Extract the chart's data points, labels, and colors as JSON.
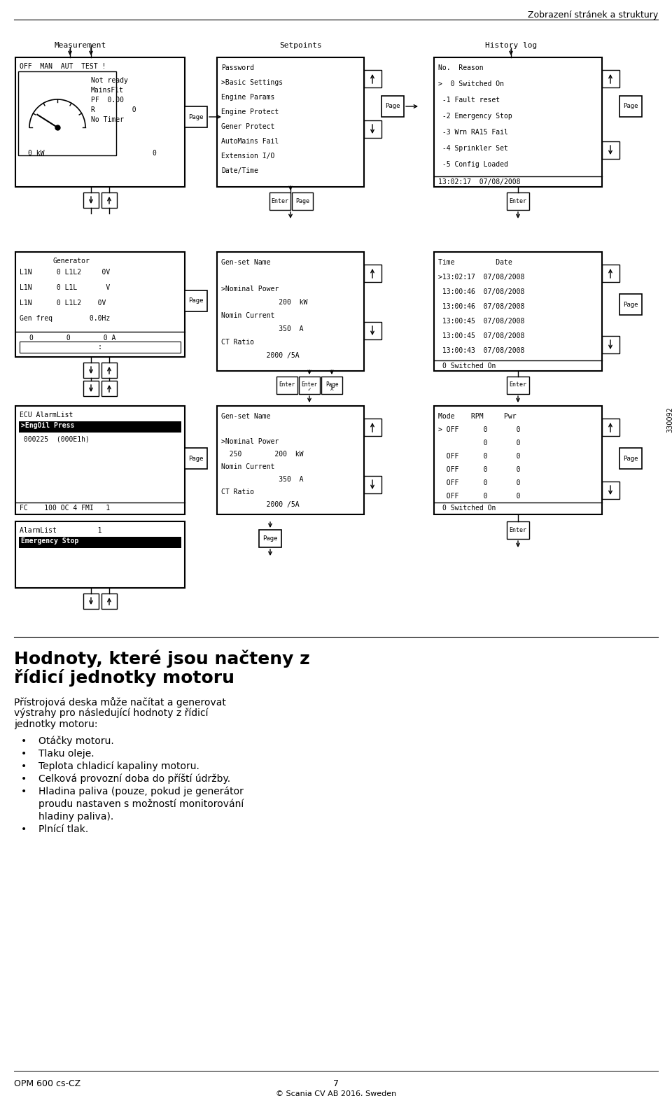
{
  "title_top_right": "Zobrazení stránek a struktury",
  "bg_color": "#ffffff",
  "text_color": "#000000",
  "mono_font": "DejaVu Sans Mono",
  "sans_font": "DejaVu Sans",
  "heading_line1": "Hodnoty, které jsou načteny z",
  "heading_line2": "řídicí jednotky motoru",
  "body_line1": "Přístrojová deska může načítat a generovat",
  "body_line2": "výstrahy pro následující hodnoty z řídicí",
  "body_line3": "jednotky motoru:",
  "bullets": [
    "Otáčky motoru.",
    "Tlaku oleje.",
    "Teplota chladicí kapaliny motoru.",
    "Celková provozní doba do příští údržby.",
    "Hladina paliva (pouze, pokud je generátor",
    "proudu nastaven s možností monitorování",
    "hladiny paliva).",
    "Plnící tlak."
  ],
  "bullet_marks": [
    true,
    true,
    true,
    true,
    true,
    false,
    false,
    true
  ],
  "footer_left": "OPM 600 cs-CZ",
  "footer_center": "7",
  "footer_right": "© Scania CV AB 2016, Sweden",
  "sidebar_text": "330092"
}
